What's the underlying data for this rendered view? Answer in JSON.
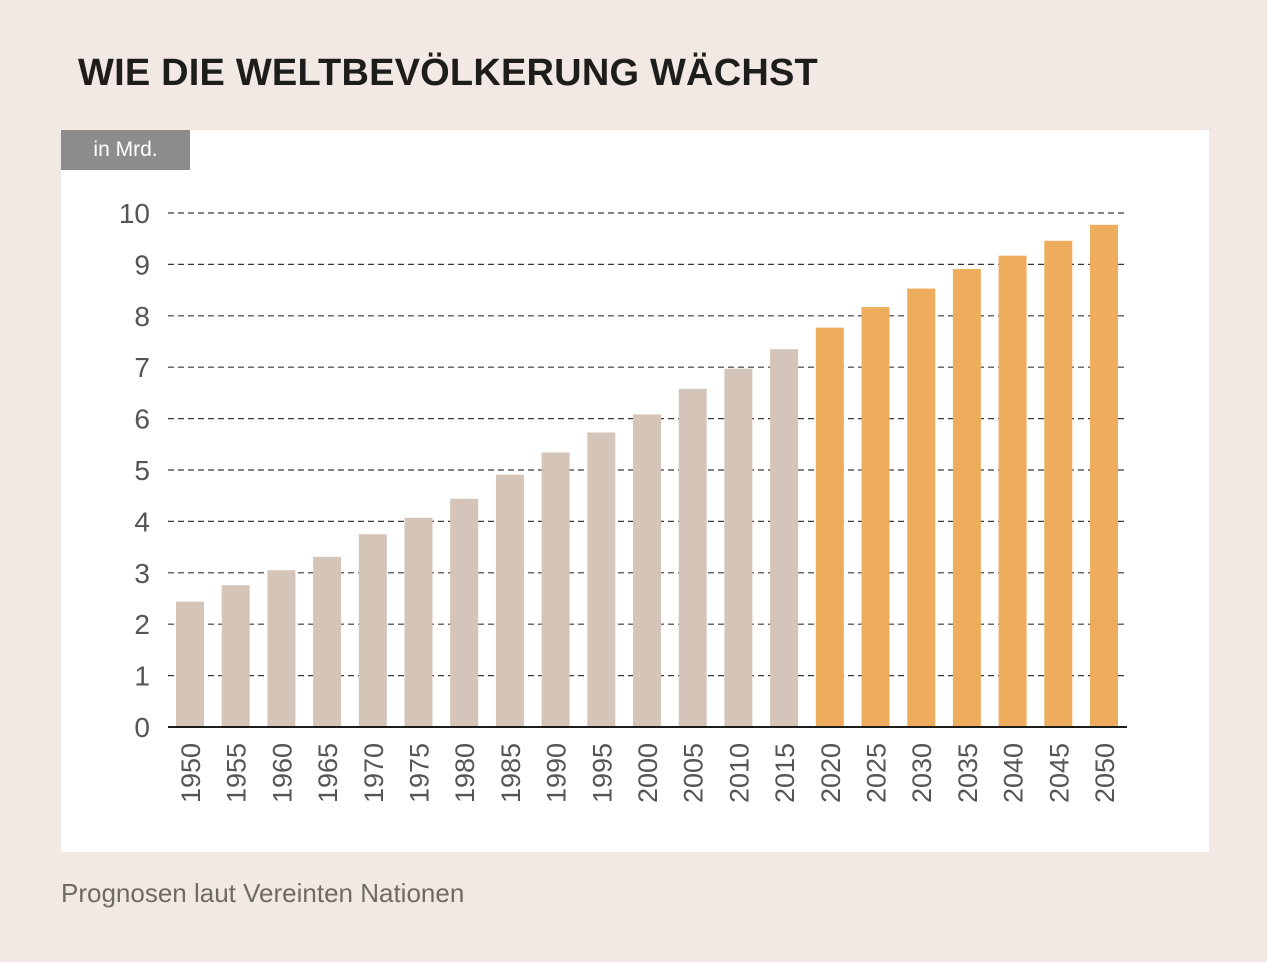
{
  "title": "WIE DIE WELTBEVÖLKERUNG WÄCHST",
  "unit_label": "in Mrd.",
  "source_note": "Prognosen laut Vereinten Nationen",
  "colors": {
    "background": "#f3e9e4",
    "panel": "#ffffff",
    "historical_bar": "#d4c5b8",
    "projected_bar": "#edad5c",
    "axis": "#1d1d1b",
    "grid": "#3a3a3a",
    "tick_text": "#555555"
  },
  "chart_data": {
    "type": "bar",
    "title": "WIE DIE WELTBEVÖLKERUNG WÄCHST",
    "ylabel": "in Mrd.",
    "xlabel": "",
    "ylim": [
      0,
      10
    ],
    "yticks": [
      0,
      1,
      2,
      3,
      4,
      5,
      6,
      7,
      8,
      9,
      10
    ],
    "grid": "horizontal dashed",
    "categories": [
      "1950",
      "1955",
      "1960",
      "1965",
      "1970",
      "1975",
      "1980",
      "1985",
      "1990",
      "1995",
      "2000",
      "2005",
      "2010",
      "2015",
      "2020",
      "2025",
      "2030",
      "2035",
      "2040",
      "2045",
      "2050"
    ],
    "values": [
      2.44,
      2.76,
      3.05,
      3.31,
      3.75,
      4.07,
      4.44,
      4.91,
      5.34,
      5.73,
      6.08,
      6.58,
      6.97,
      7.35,
      7.77,
      8.17,
      8.53,
      8.91,
      9.17,
      9.46,
      9.77
    ],
    "projected_from": "2020",
    "annotation": "Prognosen laut Vereinten Nationen"
  }
}
